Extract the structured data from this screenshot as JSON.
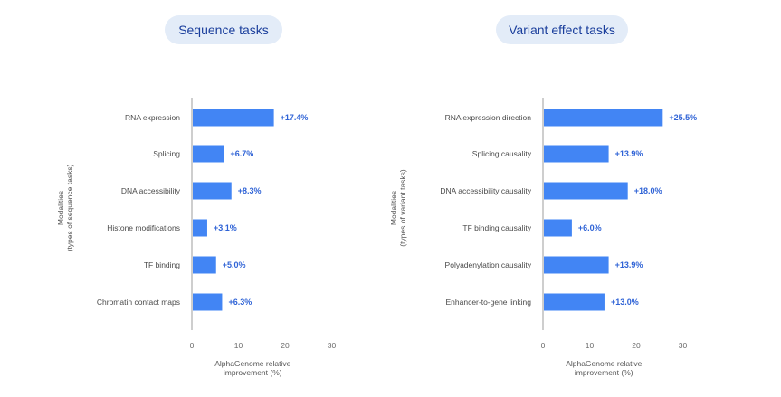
{
  "chart_data": [
    {
      "type": "bar",
      "orientation": "horizontal",
      "title": "Sequence tasks",
      "categories": [
        "RNA expression",
        "Splicing",
        "DNA accessibility",
        "Histone modifications",
        "TF binding",
        "Chromatin contact maps"
      ],
      "values": [
        17.4,
        6.7,
        8.3,
        3.1,
        5.0,
        6.3
      ],
      "value_labels": [
        "+17.4%",
        "+6.7%",
        "+8.3%",
        "+3.1%",
        "+5.0%",
        "+6.3%"
      ],
      "xlabel": [
        "AlphaGenome relative",
        "improvement (%)"
      ],
      "ylabel": [
        "Modalities",
        "(types of sequence tasks)"
      ],
      "xlim": [
        0,
        30
      ],
      "xticks": [
        0,
        10,
        20,
        30
      ],
      "grid": false,
      "bar_color": "#4285f4"
    },
    {
      "type": "bar",
      "orientation": "horizontal",
      "title": "Variant effect tasks",
      "categories": [
        "RNA expression direction",
        "Splicing causality",
        "DNA accessibility causality",
        "TF binding causality",
        "Polyadenylation causality",
        "Enhancer-to-gene linking"
      ],
      "values": [
        25.5,
        13.9,
        18.0,
        6.0,
        13.9,
        13.0
      ],
      "value_labels": [
        "+25.5%",
        "+13.9%",
        "+18.0%",
        "+6.0%",
        "+13.9%",
        "+13.0%"
      ],
      "xlabel": [
        "AlphaGenome relative",
        "improvement (%)"
      ],
      "ylabel": [
        "Modalities",
        "(types of variant tasks)"
      ],
      "xlim": [
        0,
        30
      ],
      "xticks": [
        0,
        10,
        20,
        30
      ],
      "grid": false,
      "bar_color": "#4285f4"
    }
  ]
}
